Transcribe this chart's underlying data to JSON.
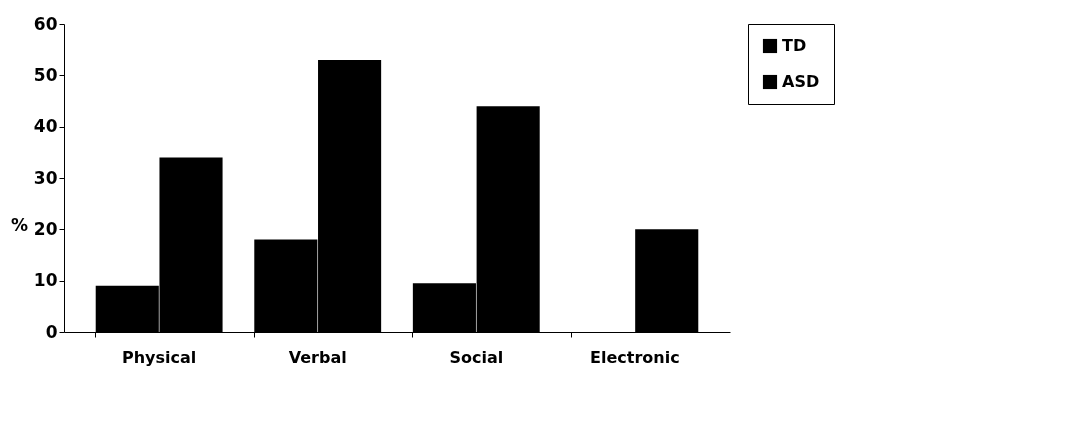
{
  "chart_data": {
    "type": "bar",
    "ylabel": "%",
    "categories": [
      "Physical",
      "Verbal",
      "Social",
      "Electronic"
    ],
    "series": [
      {
        "name": "TD",
        "color": "#000000",
        "values": [
          9,
          18,
          9.5,
          0
        ]
      },
      {
        "name": "ASD",
        "color": "#000000",
        "values": [
          34,
          53,
          44,
          20
        ]
      }
    ],
    "ylim": [
      0,
      60
    ],
    "yticks": [
      0,
      10,
      20,
      30,
      40,
      50,
      60
    ],
    "grid": false,
    "legend": "right"
  }
}
